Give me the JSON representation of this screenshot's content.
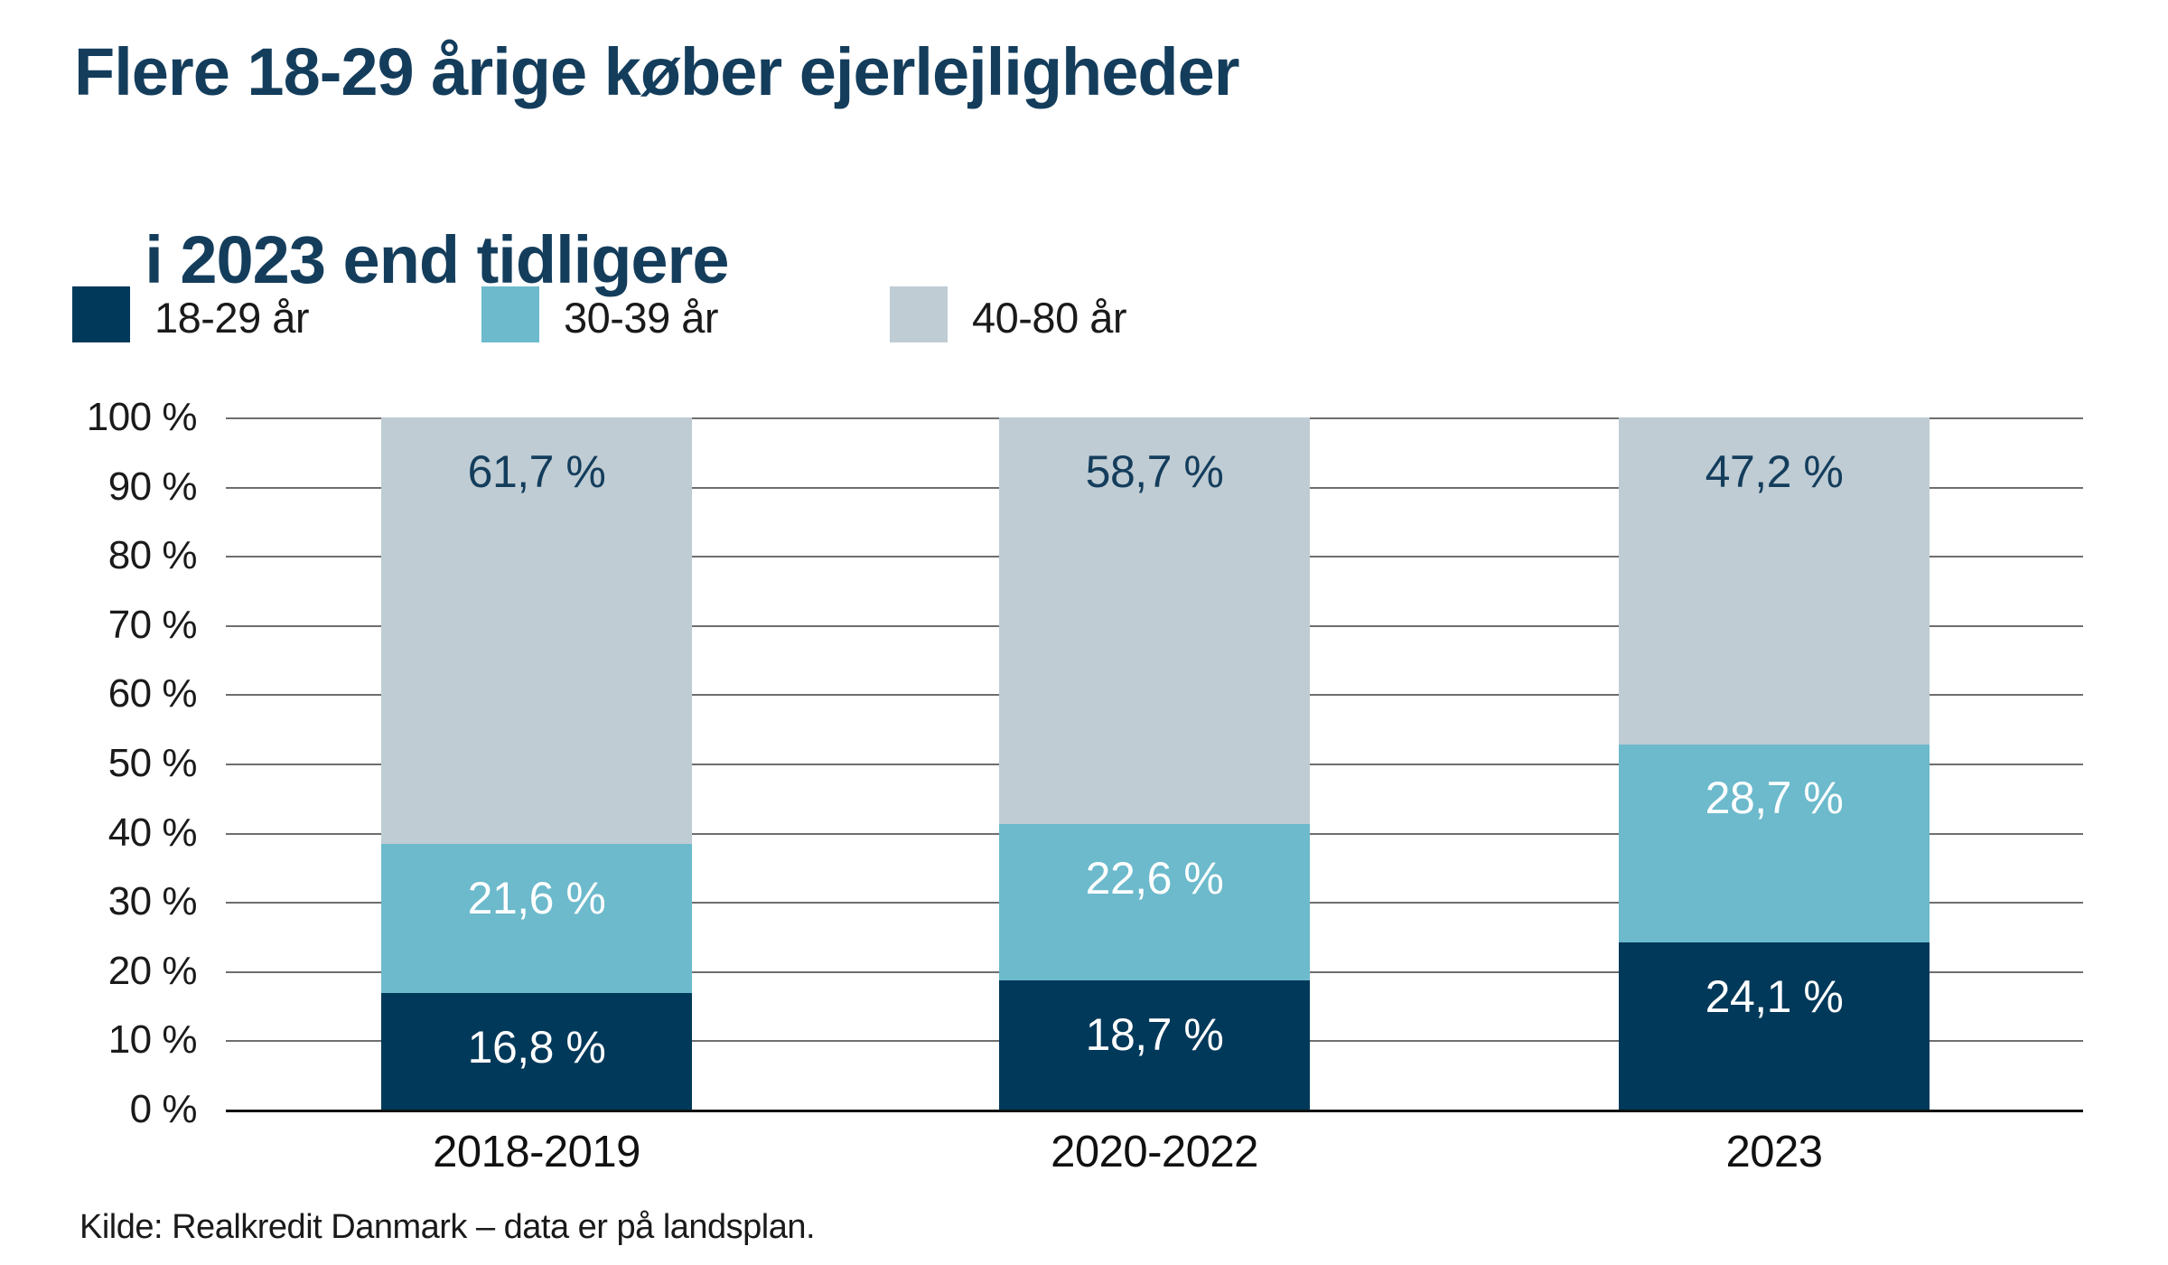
{
  "title": {
    "line1": "Flere 18-29 årige køber ejerlejligheder",
    "line2": "i 2023 end tidligere",
    "color": "#143d5c"
  },
  "legend": {
    "items": [
      {
        "label": "18-29 år",
        "color": "#00395a"
      },
      {
        "label": "30-39 år",
        "color": "#6cbacc"
      },
      {
        "label": "40-80 år",
        "color": "#bfccd4"
      }
    ]
  },
  "source": "Kilde: Realkredit Danmark – data er på landsplan.",
  "colors": {
    "navy": "#00395a",
    "teal": "#6cbacc",
    "gray": "#bfccd4",
    "title_navy": "#143d5c",
    "gridline": "#6e6e6e",
    "baseline": "#111111",
    "axis_text": "#1a1a1a"
  },
  "chart_data": {
    "type": "bar",
    "stacked": true,
    "title": "Flere 18-29 årige køber ejerlejligheder i 2023 end tidligere",
    "categories": [
      "2018-2019",
      "2020-2022",
      "2023"
    ],
    "series": [
      {
        "name": "18-29 år",
        "values": [
          16.8,
          18.7,
          24.1
        ],
        "color": "#00395a",
        "label_color": "#ffffff"
      },
      {
        "name": "30-39 år",
        "values": [
          21.6,
          22.6,
          28.7
        ],
        "color": "#6cbacc",
        "label_color": "#ffffff"
      },
      {
        "name": "40-80 år",
        "values": [
          61.7,
          58.7,
          47.2
        ],
        "color": "#bfccd4",
        "label_color": "#143d5c"
      }
    ],
    "value_labels": [
      [
        "16,8 %",
        "18,7 %",
        "24,1 %"
      ],
      [
        "21,6 %",
        "22,6 %",
        "28,7 %"
      ],
      [
        "61,7 %",
        "58,7 %",
        "47,2 %"
      ]
    ],
    "y_ticks": [
      "100 %",
      "90 %",
      "80 %",
      "70 %",
      "60 %",
      "50 %",
      "40 %",
      "30 %",
      "20 %",
      "10 %",
      "0 %"
    ],
    "ylim": [
      0,
      100
    ],
    "xlabel": "",
    "ylabel": "",
    "grid": true,
    "legend_position": "top"
  }
}
